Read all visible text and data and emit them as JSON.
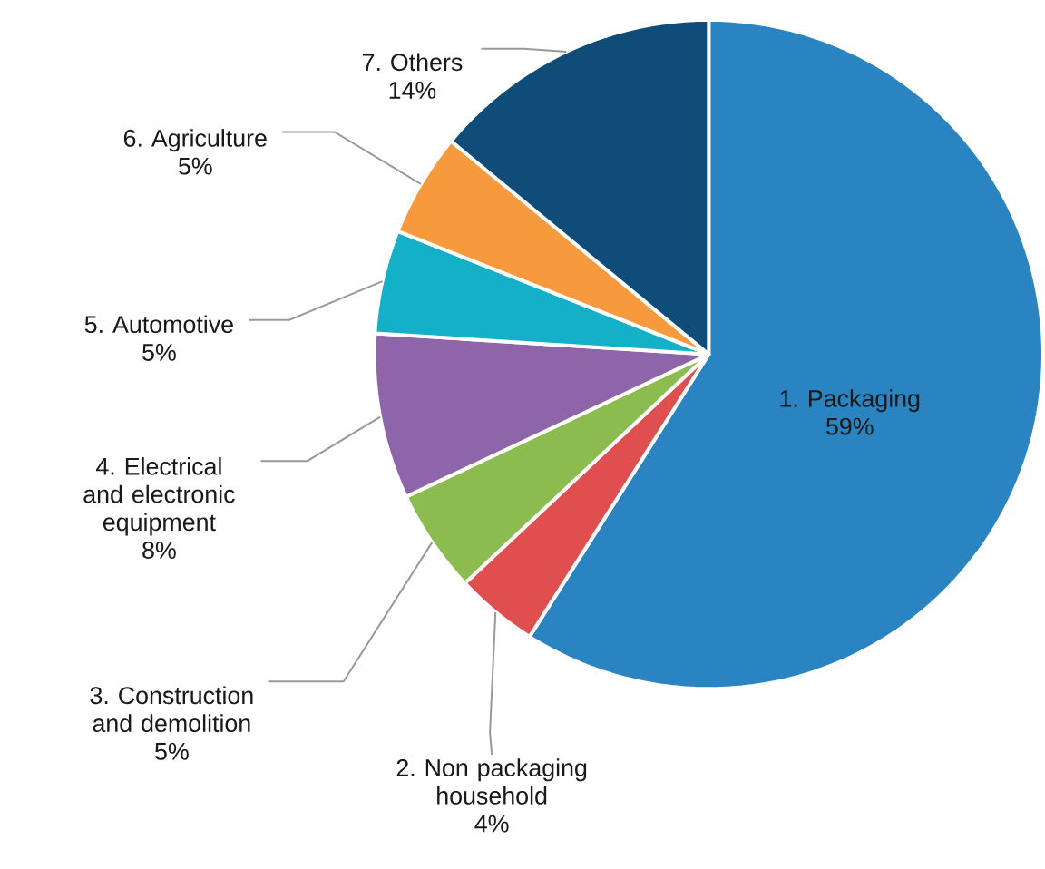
{
  "chart_data": {
    "type": "pie",
    "categories": [
      "1. Packaging",
      "2. Non packaging household",
      "3. Construction and demolition",
      "4. Electrical and electronic equipment",
      "5. Automotive",
      "6. Agriculture",
      "7. Others"
    ],
    "values": [
      59,
      4,
      5,
      8,
      5,
      5,
      14
    ],
    "value_labels": [
      "59%",
      "4%",
      "5%",
      "8%",
      "5%",
      "5%",
      "14%"
    ],
    "colors": [
      "#2a84c2",
      "#e04f4f",
      "#8cbb4f",
      "#8d65a8",
      "#14b0c8",
      "#f79a3e",
      "#0f4c78"
    ]
  }
}
